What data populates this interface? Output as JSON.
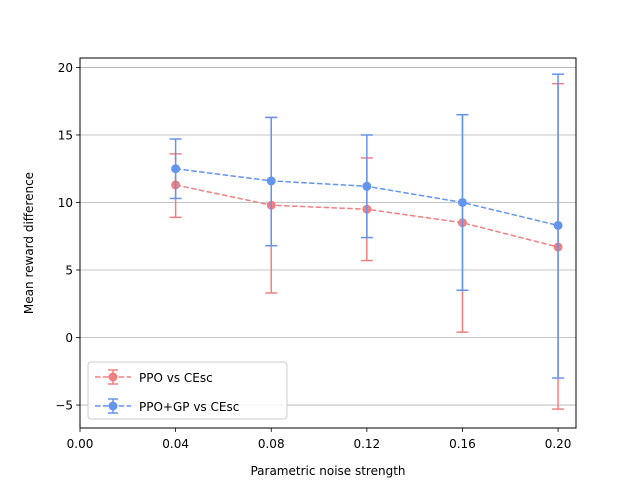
{
  "chart_data": {
    "type": "line",
    "title": "",
    "xlabel": "Parametric noise strength",
    "ylabel": "Mean reward difference",
    "xlim": [
      0.0,
      0.2075
    ],
    "ylim": [
      -6.7,
      20.7
    ],
    "xticks": [
      0.0,
      0.04,
      0.08,
      0.12,
      0.16,
      0.2
    ],
    "xtick_labels": [
      "0.00",
      "0.04",
      "0.08",
      "0.12",
      "0.16",
      "0.20"
    ],
    "yticks": [
      -5,
      0,
      5,
      10,
      15,
      20
    ],
    "ytick_labels": [
      "−5",
      "0",
      "5",
      "10",
      "15",
      "20"
    ],
    "grid": "horizontal",
    "legend_position": "lower-left",
    "x": [
      0.04,
      0.08,
      0.12,
      0.16,
      0.2
    ],
    "series": [
      {
        "name": "PPO vs CEsc",
        "color": "#f08080",
        "values": [
          11.3,
          9.8,
          9.5,
          8.5,
          6.7
        ],
        "err_low": [
          8.9,
          3.3,
          5.7,
          0.4,
          -5.3
        ],
        "err_high": [
          13.6,
          16.3,
          13.3,
          16.5,
          18.8
        ]
      },
      {
        "name": "PPO+GP vs CEsc",
        "color": "#6495ed",
        "values": [
          12.5,
          11.6,
          11.2,
          10.0,
          8.3
        ],
        "err_low": [
          10.3,
          6.8,
          7.4,
          3.5,
          -3.0
        ],
        "err_high": [
          14.7,
          16.3,
          15.0,
          16.5,
          19.5
        ]
      }
    ]
  }
}
